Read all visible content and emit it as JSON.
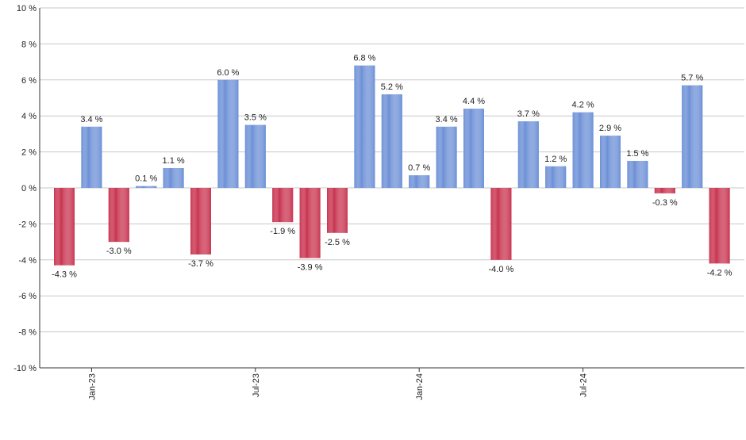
{
  "chart_data": {
    "type": "bar",
    "categories": [
      null,
      "Jan-23",
      null,
      null,
      null,
      null,
      null,
      "Jul-23",
      null,
      null,
      null,
      null,
      null,
      "Jan-24",
      null,
      null,
      null,
      null,
      null,
      "Jul-24",
      null,
      null,
      null,
      null,
      null
    ],
    "values": [
      -4.3,
      3.4,
      -3.0,
      0.1,
      1.1,
      -3.7,
      6.0,
      3.5,
      -1.9,
      -3.9,
      -2.5,
      6.8,
      5.2,
      0.7,
      3.4,
      4.4,
      -4.0,
      3.7,
      1.2,
      4.2,
      2.9,
      1.5,
      -0.3,
      5.7,
      -4.2
    ],
    "value_labels": [
      "-4.3 %",
      "3.4 %",
      "-3.0 %",
      "0.1 %",
      "1.1 %",
      "-3.7 %",
      "6.0 %",
      "3.5 %",
      "-1.9 %",
      "-3.9 %",
      "-2.5 %",
      "6.8 %",
      "5.2 %",
      "0.7 %",
      "3.4 %",
      "4.4 %",
      "-4.0 %",
      "3.7 %",
      "1.2 %",
      "4.2 %",
      "2.9 %",
      "1.5 %",
      "-0.3 %",
      "5.7 %",
      "-4.2 %"
    ],
    "positive_color": "#6b8fd6",
    "negative_color": "#c8324e",
    "ylim": [
      -10,
      10
    ],
    "yticks": [
      {
        "value": -10,
        "label": "-10 %"
      },
      {
        "value": -8,
        "label": "-8 %"
      },
      {
        "value": -6,
        "label": "-6 %"
      },
      {
        "value": -4,
        "label": "-4 %"
      },
      {
        "value": -2,
        "label": "-2 %"
      },
      {
        "value": 0,
        "label": "0 %"
      },
      {
        "value": 2,
        "label": "2 %"
      },
      {
        "value": 4,
        "label": "4 %"
      },
      {
        "value": 6,
        "label": "6 %"
      },
      {
        "value": 8,
        "label": "8 %"
      },
      {
        "value": 10,
        "label": "10 %"
      }
    ],
    "grid": true
  }
}
